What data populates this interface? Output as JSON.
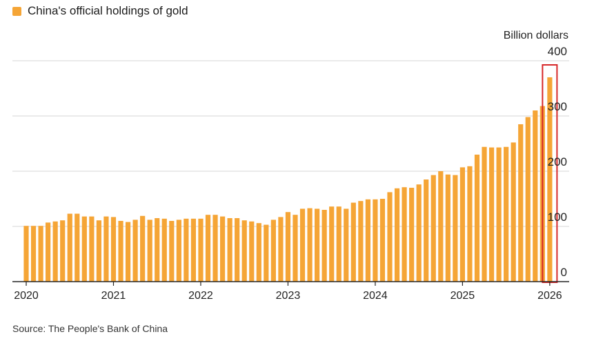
{
  "legend": {
    "label": "China's official holdings of gold",
    "color": "#f5a536"
  },
  "source": "Source: The People's Bank of China",
  "chart_data": {
    "type": "bar",
    "unit_label": "Billion dollars",
    "ylim": [
      0,
      400
    ],
    "yticks": [
      0,
      100,
      200,
      300,
      400
    ],
    "xticks": [
      "2020",
      "2021",
      "2022",
      "2023",
      "2024",
      "2025",
      "2026"
    ],
    "grid": true,
    "highlight_last": true,
    "highlight_color": "#d62728",
    "bar_color": "#f5a536",
    "categories": [
      "2020-01",
      "2020-02",
      "2020-03",
      "2020-04",
      "2020-05",
      "2020-06",
      "2020-07",
      "2020-08",
      "2020-09",
      "2020-10",
      "2020-11",
      "2020-12",
      "2021-01",
      "2021-02",
      "2021-03",
      "2021-04",
      "2021-05",
      "2021-06",
      "2021-07",
      "2021-08",
      "2021-09",
      "2021-10",
      "2021-11",
      "2021-12",
      "2022-01",
      "2022-02",
      "2022-03",
      "2022-04",
      "2022-05",
      "2022-06",
      "2022-07",
      "2022-08",
      "2022-09",
      "2022-10",
      "2022-11",
      "2022-12",
      "2023-01",
      "2023-02",
      "2023-03",
      "2023-04",
      "2023-05",
      "2023-06",
      "2023-07",
      "2023-08",
      "2023-09",
      "2023-10",
      "2023-11",
      "2023-12",
      "2024-01",
      "2024-02",
      "2024-03",
      "2024-04",
      "2024-05",
      "2024-06",
      "2024-07",
      "2024-08",
      "2024-09",
      "2024-10",
      "2024-11",
      "2024-12",
      "2025-01",
      "2025-02",
      "2025-03",
      "2025-04",
      "2025-05",
      "2025-06",
      "2025-07",
      "2025-08",
      "2025-09",
      "2025-10",
      "2025-11",
      "2025-12",
      "2026-01"
    ],
    "values": [
      101,
      101,
      101,
      107,
      109,
      111,
      123,
      123,
      118,
      118,
      111,
      118,
      117,
      110,
      108,
      112,
      119,
      112,
      115,
      114,
      110,
      112,
      114,
      114,
      114,
      121,
      121,
      118,
      115,
      115,
      111,
      109,
      106,
      103,
      112,
      117,
      126,
      121,
      132,
      133,
      132,
      130,
      136,
      136,
      132,
      143,
      146,
      149,
      149,
      150,
      162,
      169,
      171,
      170,
      176,
      185,
      193,
      200,
      194,
      193,
      207,
      209,
      230,
      244,
      243,
      243,
      244,
      252,
      285,
      298,
      310,
      318,
      370
    ]
  }
}
